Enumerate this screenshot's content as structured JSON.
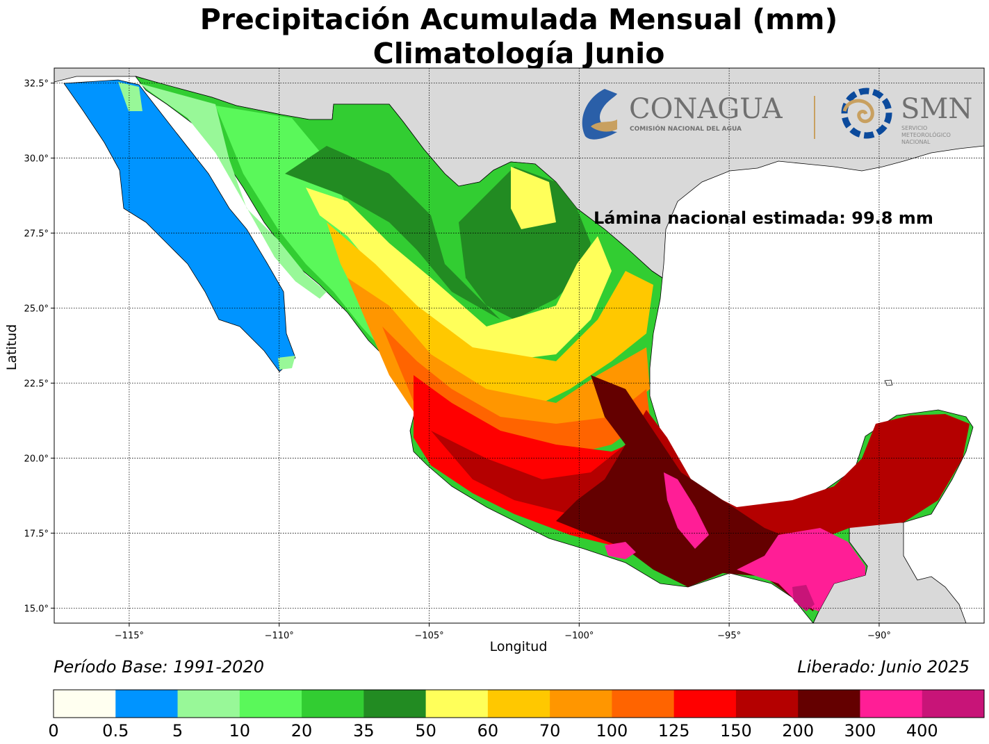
{
  "header": {
    "title": "Precipitación Acumulada Mensual (mm)",
    "subtitle": "Climatología Junio"
  },
  "map": {
    "xlabel": "Longitud",
    "ylabel": "Latitud",
    "lon_range": [
      -117.5,
      -86.5
    ],
    "lat_range": [
      14.5,
      33
    ],
    "lon_ticks": [
      "−115°",
      "−110°",
      "−105°",
      "−100°",
      "−95°",
      "−90°"
    ],
    "lon_tick_values": [
      -115,
      -110,
      -105,
      -100,
      -95,
      -90
    ],
    "lat_ticks": [
      "32.5°",
      "30.0°",
      "27.5°",
      "25.0°",
      "22.5°",
      "20.0°",
      "17.5°",
      "15.0°"
    ],
    "lat_tick_values": [
      32.5,
      30,
      27.5,
      25,
      22.5,
      20,
      17.5,
      15
    ],
    "grid": true,
    "annotation": "Lámina nacional estimada: 99.8 mm",
    "land_color": "#d9d9d9",
    "ocean_color": "#ffffff"
  },
  "logos": {
    "conagua_name": "CONAGUA",
    "conagua_sub": "COMISIÓN NACIONAL DEL AGUA",
    "smn_name": "SMN",
    "smn_sub": [
      "SERVICIO",
      "METEOROLÓGICO",
      "NACIONAL"
    ]
  },
  "footer": {
    "period": "Período Base: 1991-2020",
    "released": "Liberado: Junio 2025"
  },
  "colorbar": {
    "labels": [
      "0",
      "0.5",
      "5",
      "10",
      "20",
      "35",
      "50",
      "60",
      "70",
      "100",
      "125",
      "150",
      "200",
      "300",
      "400"
    ],
    "colors": [
      "#fffff0",
      "#0094ff",
      "#98f898",
      "#5af85a",
      "#32cd32",
      "#228b22",
      "#ffff5a",
      "#ffc800",
      "#ff9600",
      "#ff6400",
      "#ff0000",
      "#b40000",
      "#640000",
      "#ff1e96",
      "#c81478"
    ]
  }
}
